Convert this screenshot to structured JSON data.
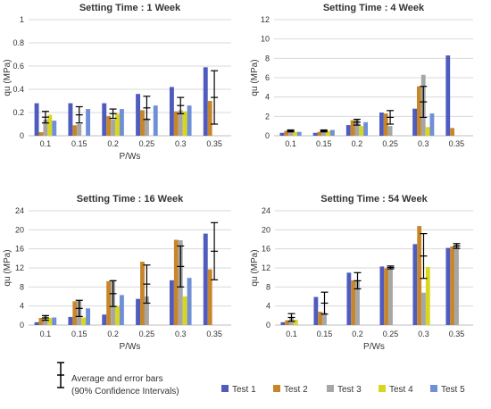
{
  "chart_data": [
    {
      "type": "bar",
      "title": "Setting Time : 1 Week",
      "ylabel": "qu (MPa)",
      "xlabel": "P/Ws",
      "categories": [
        "0.1",
        "0.15",
        "0.2",
        "0.25",
        "0.3",
        "0.35"
      ],
      "yticks": [
        "0",
        "0.2",
        "0.4",
        "0.6",
        "0.8",
        "1"
      ],
      "ylim": [
        0,
        1
      ],
      "grid": true,
      "series": [
        {
          "name": "Test 1",
          "values": [
            0.28,
            0.28,
            0.28,
            0.36,
            0.42,
            0.59
          ]
        },
        {
          "name": "Test 2",
          "values": [
            0.03,
            0.09,
            0.17,
            0.22,
            0.21,
            0.3
          ]
        },
        {
          "name": "Test 3",
          "values": [
            0.14,
            0.1,
            0.14,
            0.15,
            0.22,
            null
          ]
        },
        {
          "name": "Test 4",
          "values": [
            0.18,
            null,
            0.19,
            null,
            0.21,
            null
          ]
        },
        {
          "name": "Test 5",
          "values": [
            0.13,
            0.23,
            0.23,
            0.26,
            0.26,
            null
          ]
        }
      ],
      "avg": [
        0.16,
        0.18,
        0.19,
        0.24,
        0.26,
        0.33
      ],
      "err": [
        0.05,
        0.07,
        0.04,
        0.1,
        0.07,
        0.23
      ]
    },
    {
      "type": "bar",
      "title": "Setting Time : 4 Week",
      "ylabel": "qu (MPa)",
      "xlabel": "",
      "categories": [
        "0.1",
        "0.15",
        "0.2",
        "0.25",
        "0.3",
        "0.35"
      ],
      "yticks": [
        "0",
        "2",
        "4",
        "6",
        "8",
        "10",
        "12"
      ],
      "ylim": [
        0,
        12
      ],
      "grid": true,
      "series": [
        {
          "name": "Test 1",
          "values": [
            0.3,
            0.3,
            1.1,
            2.4,
            2.8,
            8.3
          ]
        },
        {
          "name": "Test 2",
          "values": [
            0.5,
            0.4,
            1.6,
            2.3,
            5.1,
            0.8
          ]
        },
        {
          "name": "Test 3",
          "values": [
            0.6,
            0.5,
            1.7,
            1.0,
            6.3,
            null
          ]
        },
        {
          "name": "Test 4",
          "values": [
            0.4,
            0.5,
            1.0,
            null,
            0.9,
            null
          ]
        },
        {
          "name": "Test 5",
          "values": [
            0.4,
            0.6,
            1.4,
            null,
            2.3,
            null
          ]
        }
      ],
      "avg": [
        0.5,
        0.5,
        1.4,
        1.9,
        3.5,
        null
      ],
      "err": [
        0.1,
        0.1,
        0.3,
        0.7,
        1.6,
        null
      ]
    },
    {
      "type": "bar",
      "title": "Setting Time : 16 Week",
      "ylabel": "qu (MPa)",
      "xlabel": "P/Ws",
      "categories": [
        "0.1",
        "0.15",
        "0.2",
        "0.25",
        "0.3",
        "0.35"
      ],
      "yticks": [
        "0",
        "4",
        "8",
        "12",
        "16",
        "20",
        "24"
      ],
      "ylim": [
        0,
        24
      ],
      "grid": true,
      "series": [
        {
          "name": "Test 1",
          "values": [
            0.6,
            1.7,
            2.2,
            5.5,
            9.4,
            19.2
          ]
        },
        {
          "name": "Test 2",
          "values": [
            1.5,
            5.0,
            9.2,
            13.3,
            17.9,
            11.7
          ]
        },
        {
          "name": "Test 3",
          "values": [
            2.0,
            5.1,
            9.5,
            6.0,
            17.8,
            null
          ]
        },
        {
          "name": "Test 4",
          "values": [
            1.5,
            1.6,
            4.0,
            null,
            6.0,
            null
          ]
        },
        {
          "name": "Test 5",
          "values": [
            1.6,
            3.5,
            6.3,
            null,
            9.9,
            null
          ]
        }
      ],
      "avg": [
        1.5,
        3.5,
        6.6,
        8.6,
        12.3,
        15.5
      ],
      "err": [
        0.5,
        1.7,
        2.7,
        4.0,
        4.3,
        6.0
      ]
    },
    {
      "type": "bar",
      "title": "Setting Time : 54 Week",
      "ylabel": "qu (MPa)",
      "xlabel": "P/Ws",
      "categories": [
        "0.1",
        "0.15",
        "0.2",
        "0.25",
        "0.3",
        "0.35"
      ],
      "yticks": [
        "0",
        "4",
        "8",
        "12",
        "16",
        "20",
        "24"
      ],
      "ylim": [
        0,
        24
      ],
      "grid": true,
      "series": [
        {
          "name": "Test 1",
          "values": [
            0.6,
            5.9,
            11.0,
            12.3,
            17.0,
            16.2
          ]
        },
        {
          "name": "Test 2",
          "values": [
            1.0,
            2.8,
            9.4,
            11.9,
            20.8,
            16.5
          ]
        },
        {
          "name": "Test 3",
          "values": [
            1.5,
            2.6,
            9.3,
            12.0,
            6.8,
            17.0
          ]
        },
        {
          "name": "Test 4",
          "values": [
            1.1,
            null,
            null,
            null,
            12.2,
            null
          ]
        },
        {
          "name": "Test 5",
          "values": [
            null,
            null,
            null,
            null,
            null,
            null
          ]
        }
      ],
      "avg": [
        1.6,
        4.6,
        9.3,
        12.1,
        14.5,
        16.6
      ],
      "err": [
        0.8,
        2.3,
        1.7,
        0.3,
        4.7,
        0.5
      ]
    }
  ],
  "legend": {
    "errorbar_text_1": "Average and error bars",
    "errorbar_text_2": "(90% Confidence Intervals)",
    "items": [
      {
        "name": "Test 1",
        "color": "#4f5bbd"
      },
      {
        "name": "Test 2",
        "color": "#c8862a"
      },
      {
        "name": "Test 3",
        "color": "#a6a6a6"
      },
      {
        "name": "Test 4",
        "color": "#d9d61e"
      },
      {
        "name": "Test 5",
        "color": "#6f8fd6"
      }
    ]
  }
}
